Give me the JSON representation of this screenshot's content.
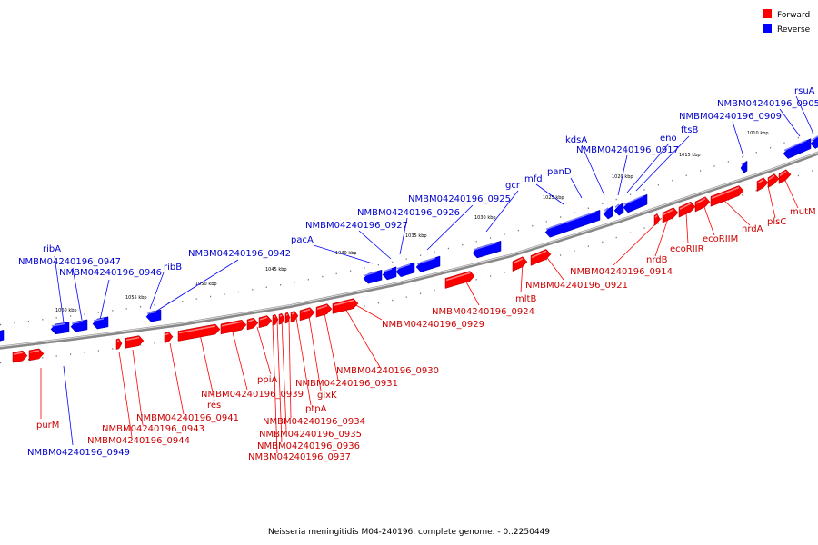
{
  "legend": {
    "forward": "Forward",
    "reverse": "Reverse"
  },
  "colors": {
    "forward": "#ff0000",
    "reverse": "#0000ff",
    "backbone": "#808080"
  },
  "caption": "Neisseria meningitidis M04-240196, complete genome. - 0..2250449",
  "scale_labels": [
    "1010 kbp",
    "1015 kbp",
    "1020 kbp",
    "1025 kbp",
    "1030 kbp",
    "1035 kbp",
    "1040 kbp",
    "1045 kbp",
    "1050 kbp",
    "1055 kbp",
    "1060 kbp"
  ],
  "reverse_gene_labels": [
    "rsuA",
    "NMBM04240196_0905",
    "NMBM04240196_0909",
    "ftsB",
    "eno",
    "NMBM04240196_0917",
    "kdsA",
    "panD",
    "mfd",
    "gcr",
    "NMBM04240196_0925",
    "NMBM04240196_0926",
    "NMBM04240196_0927",
    "pacA",
    "NMBM04240196_0942",
    "ribB",
    "ribA",
    "NMBM04240196_0947",
    "NMBM04240196_0946",
    "NMBM04240196_0949"
  ],
  "forward_gene_labels": [
    "mutM",
    "plsC",
    "nrdA",
    "ecoRIIM",
    "ecoRIIR",
    "nrdB",
    "NMBM04240196_0914",
    "NMBM04240196_0921",
    "mltB",
    "NMBM04240196_0924",
    "NMBM04240196_0929",
    "NMBM04240196_0930",
    "NMBM04240196_0931",
    "glxK",
    "ptpA",
    "NMBM04240196_0934",
    "NMBM04240196_0935",
    "NMBM04240196_0936",
    "NMBM04240196_0937",
    "ppiA",
    "NMBM04240196_0939",
    "res",
    "NMBM04240196_0941",
    "NMBM04240196_0943",
    "NMBM04240196_0944",
    "purM"
  ]
}
